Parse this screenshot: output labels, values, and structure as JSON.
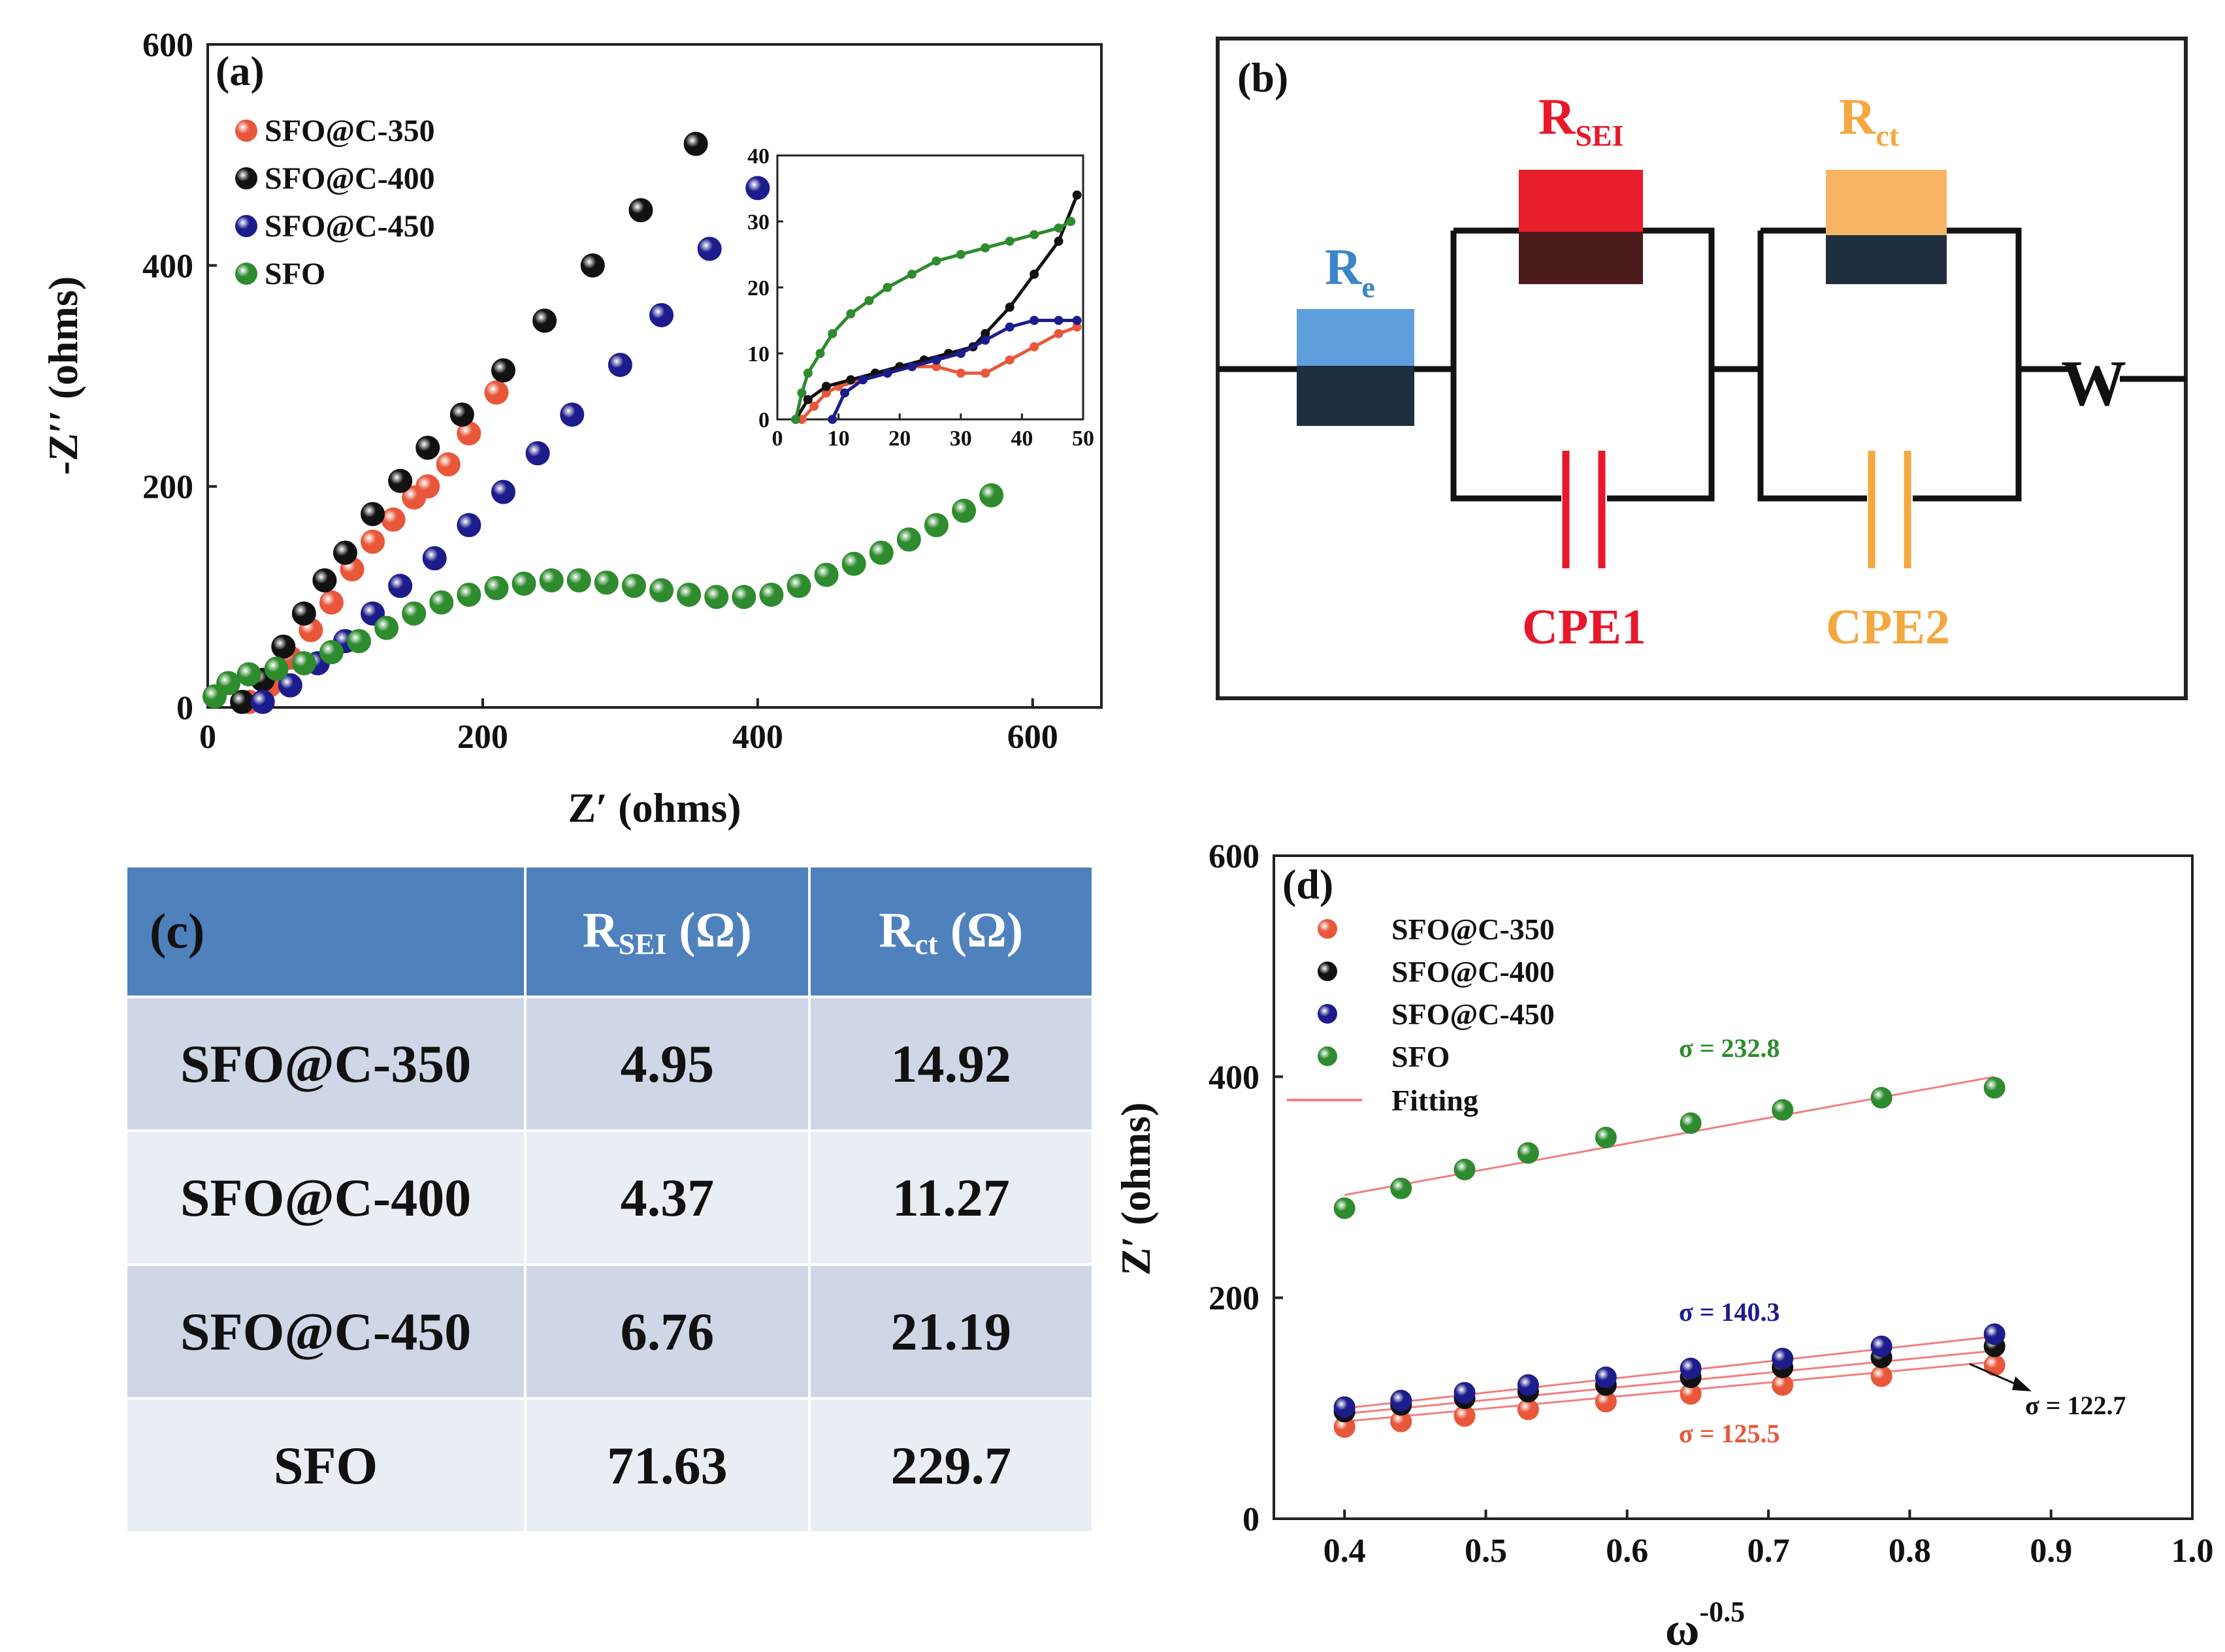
{
  "colors": {
    "series_350": "#e8573a",
    "series_400": "#111111",
    "series_450": "#1c1c8c",
    "series_sfo": "#2e8b2e",
    "fit_line": "#f08080",
    "table_header": "#4f81bd"
  },
  "chart_data": [
    {
      "panel": "(a)",
      "type": "scatter",
      "title": "",
      "xlabel": "Z′ (ohms)",
      "ylabel": "-Z′′ (ohms)",
      "xlim": [
        0,
        650
      ],
      "ylim": [
        0,
        600
      ],
      "xticks": [
        0,
        200,
        400,
        600
      ],
      "yticks": [
        0,
        200,
        400,
        600
      ],
      "legend_position": "top-left",
      "series": [
        {
          "name": "SFO@C-350",
          "color_key": "series_350",
          "x": [
            30,
            45,
            60,
            75,
            90,
            105,
            120,
            135,
            150,
            160,
            175,
            190,
            210
          ],
          "y": [
            5,
            20,
            45,
            70,
            95,
            125,
            150,
            170,
            190,
            200,
            220,
            248,
            285
          ]
        },
        {
          "name": "SFO@C-400",
          "color_key": "series_400",
          "x": [
            25,
            40,
            55,
            70,
            85,
            100,
            120,
            140,
            160,
            185,
            215,
            245,
            280,
            315,
            355
          ],
          "y": [
            5,
            25,
            55,
            85,
            115,
            140,
            175,
            205,
            235,
            265,
            305,
            350,
            400,
            450,
            510
          ]
        },
        {
          "name": "SFO@C-450",
          "color_key": "series_450",
          "x": [
            40,
            60,
            80,
            100,
            120,
            140,
            165,
            190,
            215,
            240,
            265,
            300,
            330,
            365,
            400
          ],
          "y": [
            5,
            20,
            40,
            60,
            85,
            110,
            135,
            165,
            195,
            230,
            265,
            310,
            355,
            415,
            470
          ]
        },
        {
          "name": "SFO",
          "color_key": "series_sfo",
          "x": [
            5,
            15,
            30,
            50,
            70,
            90,
            110,
            130,
            150,
            170,
            190,
            210,
            230,
            250,
            270,
            290,
            310,
            330,
            350,
            370,
            390,
            410,
            430,
            450,
            470,
            490,
            510,
            530,
            550,
            570
          ],
          "y": [
            10,
            22,
            30,
            35,
            40,
            50,
            60,
            72,
            85,
            95,
            102,
            108,
            112,
            115,
            115,
            113,
            110,
            106,
            102,
            100,
            100,
            102,
            110,
            120,
            130,
            140,
            152,
            165,
            178,
            192
          ]
        }
      ],
      "inset": {
        "xlim": [
          0,
          50
        ],
        "ylim": [
          0,
          40
        ],
        "xticks": [
          0,
          10,
          20,
          30,
          40,
          50
        ],
        "yticks": [
          0,
          10,
          20,
          30,
          40
        ],
        "series": [
          {
            "name": "SFO@C-350",
            "color_key": "series_350",
            "x": [
              4,
              6,
              8,
              10,
              14,
              18,
              22,
              26,
              30,
              34,
              38,
              42,
              46,
              49
            ],
            "y": [
              0,
              2,
              4,
              5,
              6,
              7,
              8,
              8,
              7,
              7,
              9,
              11,
              13,
              14
            ]
          },
          {
            "name": "SFO@C-400",
            "color_key": "series_400",
            "x": [
              3,
              5,
              8,
              12,
              16,
              20,
              24,
              28,
              32,
              34,
              38,
              42,
              46,
              49
            ],
            "y": [
              0,
              3,
              5,
              6,
              7,
              8,
              9,
              10,
              11,
              13,
              17,
              22,
              27,
              34
            ]
          },
          {
            "name": "SFO@C-450",
            "color_key": "series_450",
            "x": [
              9,
              11,
              14,
              18,
              22,
              26,
              30,
              34,
              38,
              42,
              46,
              49
            ],
            "y": [
              0,
              4,
              6,
              7,
              8,
              9,
              10,
              12,
              14,
              15,
              15,
              15
            ]
          },
          {
            "name": "SFO",
            "color_key": "series_sfo",
            "x": [
              3,
              4,
              5,
              7,
              9,
              12,
              15,
              18,
              22,
              26,
              30,
              34,
              38,
              42,
              46,
              48
            ],
            "y": [
              0,
              4,
              7,
              10,
              13,
              16,
              18,
              20,
              22,
              24,
              25,
              26,
              27,
              28,
              29,
              30
            ]
          }
        ]
      }
    },
    {
      "panel": "(d)",
      "type": "scatter",
      "title": "",
      "xlabel": "ω",
      "xlabel_sup": "-0.5",
      "ylabel": "Z′ (ohms)",
      "xlim": [
        0.35,
        1.0
      ],
      "ylim": [
        0,
        600
      ],
      "xticks": [
        0.4,
        0.5,
        0.6,
        0.7,
        0.8,
        0.9,
        1.0
      ],
      "xtick_labels": [
        "0.4",
        "0.5",
        "0.6",
        "0.7",
        "0.8",
        "0.9",
        "1.0"
      ],
      "yticks": [
        0,
        200,
        400,
        600
      ],
      "legend_position": "top-left",
      "x": [
        0.4,
        0.44,
        0.485,
        0.53,
        0.585,
        0.645,
        0.71,
        0.78,
        0.86
      ],
      "series": [
        {
          "name": "SFO@C-350",
          "color_key": "series_350",
          "values": [
            83,
            88,
            93,
            99,
            106,
            113,
            121,
            129,
            139
          ],
          "fit": [
            0.4,
            88,
            0.86,
            142
          ],
          "sigma_label": "σ = 125.5"
        },
        {
          "name": "SFO@C-400",
          "color_key": "series_400",
          "values": [
            97,
            103,
            109,
            115,
            121,
            128,
            137,
            146,
            156
          ],
          "fit": [
            0.4,
            95,
            0.86,
            152
          ],
          "sigma_label": "σ = 122.7"
        },
        {
          "name": "SFO@C-450",
          "color_key": "series_450",
          "values": [
            101,
            107,
            114,
            121,
            128,
            136,
            145,
            156,
            167
          ],
          "fit": [
            0.4,
            100,
            0.86,
            165
          ],
          "sigma_label": "σ = 140.3"
        },
        {
          "name": "SFO",
          "color_key": "series_sfo",
          "values": [
            281,
            299,
            316,
            331,
            345,
            358,
            370,
            381,
            390
          ],
          "fit": [
            0.4,
            293,
            0.86,
            400
          ],
          "sigma_label": "σ = 232.8"
        }
      ],
      "fit_legend": "Fitting"
    }
  ],
  "panel_labels": {
    "a": "(a)",
    "b": "(b)",
    "c": "(c)",
    "d": "(d)"
  },
  "circuit": {
    "re_main": "R",
    "re_sub": "e",
    "rsei_main": "R",
    "rsei_sub": "SEI",
    "rct_main": "R",
    "rct_sub": "ct",
    "cpe1": "CPE1",
    "cpe2": "CPE2",
    "w": "W",
    "colors": {
      "re": "#3a86c8",
      "rsei": "#e8182a",
      "rct": "#f4a840",
      "cpe1": "#e8182a",
      "cpe2": "#f4a840"
    }
  },
  "table": {
    "header": {
      "blank": "(c)",
      "rsei_main": "R",
      "rsei_sub": "SEI",
      "rsei_unit": " (Ω)",
      "rct_main": "R",
      "rct_sub": "ct",
      "rct_unit": " (Ω)"
    },
    "rows": [
      {
        "name": "SFO@C-350",
        "rsei": "4.95",
        "rct": "14.92"
      },
      {
        "name": "SFO@C-400",
        "rsei": "4.37",
        "rct": "11.27"
      },
      {
        "name": "SFO@C-450",
        "rsei": "6.76",
        "rct": "21.19"
      },
      {
        "name": "SFO",
        "rsei": "71.63",
        "rct": "229.7"
      }
    ]
  }
}
